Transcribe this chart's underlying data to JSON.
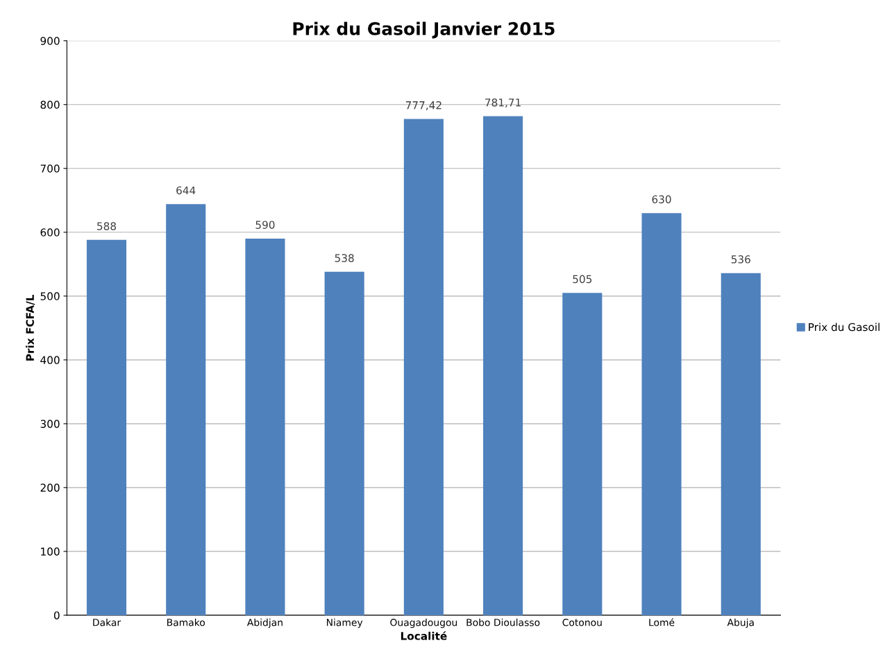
{
  "chart_data": {
    "type": "bar",
    "title": "Prix du Gasoil Janvier 2015",
    "xlabel": "Localité",
    "ylabel": "Prix FCFA/L",
    "categories": [
      "Dakar",
      "Bamako",
      "Abidjan",
      "Niamey",
      "Ouagadougou",
      "Bobo Dioulasso",
      "Cotonou",
      "Lomé",
      "Abuja"
    ],
    "series": [
      {
        "name": "Prix du Gasoil",
        "color": "#4f81bd",
        "values": [
          588,
          644,
          590,
          538,
          777.42,
          781.71,
          505,
          630,
          536
        ],
        "value_labels": [
          "588",
          "644",
          "590",
          "538",
          "777,42",
          "781,71",
          "505",
          "630",
          "536"
        ]
      }
    ],
    "ylim": [
      0,
      900
    ],
    "yticks": [
      0,
      100,
      200,
      300,
      400,
      500,
      600,
      700,
      800,
      900
    ],
    "grid": "y",
    "legend": "right"
  }
}
